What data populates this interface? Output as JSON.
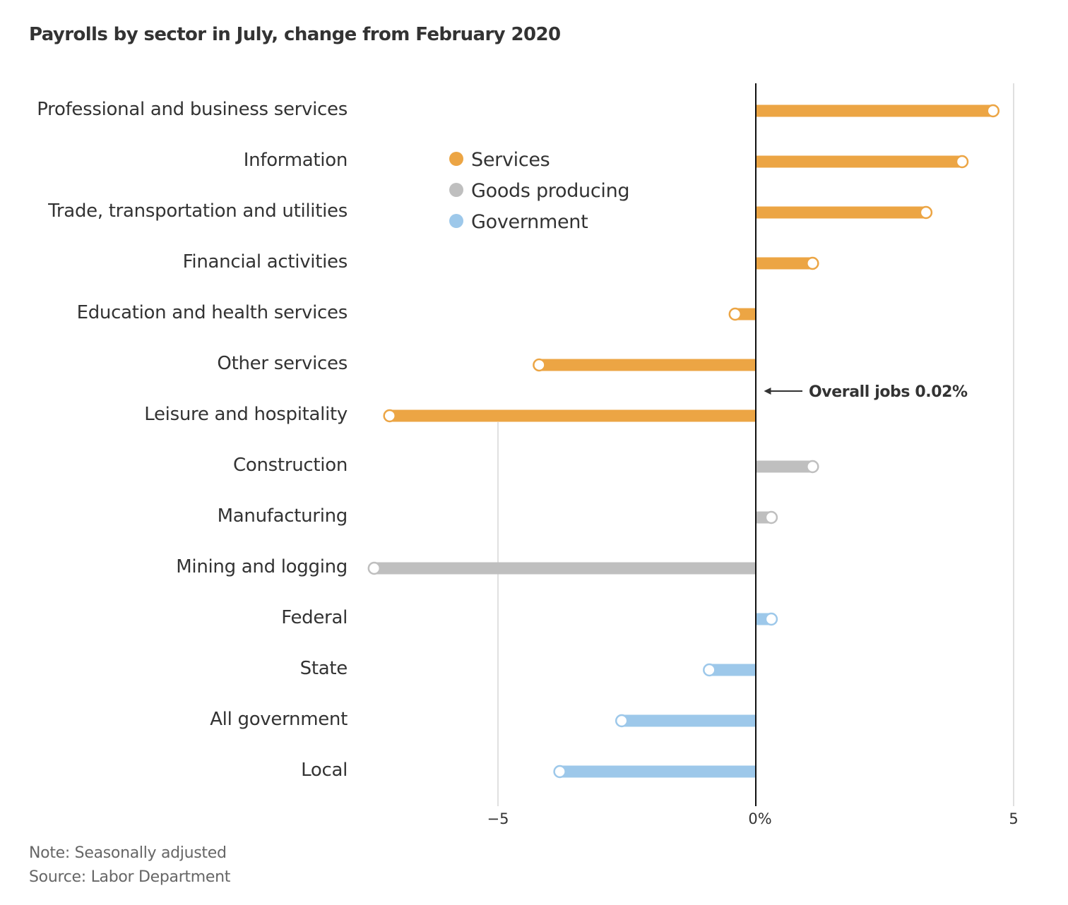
{
  "chart_data": {
    "type": "bar",
    "orientation": "horizontal",
    "title": "Payrolls by sector in July, change from February 2020",
    "xlabel": "",
    "ylabel": "",
    "xlim": [
      -7.7,
      5
    ],
    "x_ticks": [
      {
        "value": -5,
        "label": "−5"
      },
      {
        "value": 0,
        "label": "0%"
      },
      {
        "value": 5,
        "label": "5"
      }
    ],
    "grid": true,
    "legend_position": "top-center",
    "legend": [
      {
        "name": "Services",
        "color": "#eca544"
      },
      {
        "name": "Goods producing",
        "color": "#bfbfbf"
      },
      {
        "name": "Government",
        "color": "#9dc8ea"
      }
    ],
    "categories": [
      "Professional and business services",
      "Information",
      "Trade, transportation and utilities",
      "Financial activities",
      "Education and health services",
      "Other services",
      "Leisure and hospitality",
      "Construction",
      "Manufacturing",
      "Mining and logging",
      "Federal",
      "State",
      "All government",
      "Local"
    ],
    "groups": [
      "Services",
      "Services",
      "Services",
      "Services",
      "Services",
      "Services",
      "Services",
      "Goods producing",
      "Goods producing",
      "Goods producing",
      "Government",
      "Government",
      "Government",
      "Government"
    ],
    "values": [
      4.6,
      4.0,
      3.3,
      1.1,
      -0.4,
      -4.2,
      -7.1,
      1.1,
      0.3,
      -7.4,
      0.3,
      -0.9,
      -2.6,
      -3.8
    ],
    "annotations": [
      {
        "text": "Overall jobs 0.02%",
        "value": 0.02,
        "arrow": "left"
      }
    ]
  },
  "footer": {
    "note": "Note: Seasonally adjusted",
    "source": "Source: Labor Department"
  }
}
